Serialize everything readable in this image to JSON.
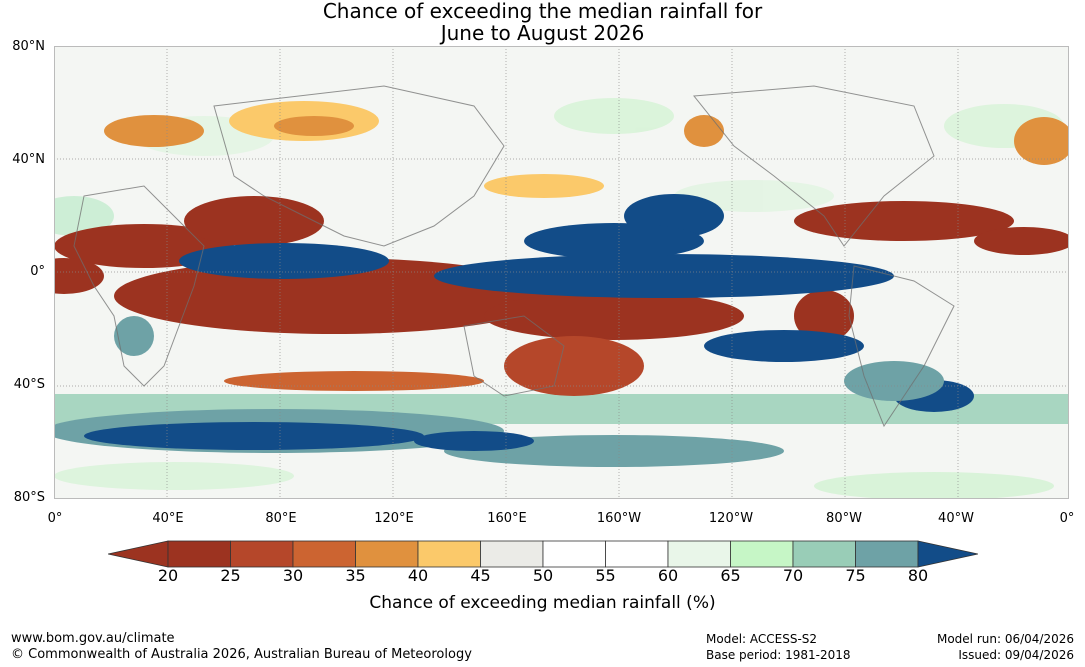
{
  "title_line1": "Chance of exceeding the median rainfall for",
  "title_line2": "June to August 2026",
  "lat_labels": [
    "80°N",
    "40°N",
    "0°",
    "40°S",
    "80°S"
  ],
  "lon_labels": [
    "0°",
    "40°E",
    "80°E",
    "120°E",
    "160°E",
    "160°W",
    "120°W",
    "80°W",
    "40°W",
    "0°"
  ],
  "colorbar": {
    "ticks": [
      "20",
      "25",
      "30",
      "35",
      "40",
      "45",
      "50",
      "55",
      "60",
      "65",
      "70",
      "75",
      "80"
    ],
    "colors": [
      "#9c3320",
      "#b5472a",
      "#cc6431",
      "#e0913e",
      "#fbc96a",
      "#ebebe7",
      "#ffffff",
      "#ffffff",
      "#e9f6e9",
      "#c6f6c6",
      "#99cdb7",
      "#6ea2a6",
      "#4a7b98"
    ],
    "under_color": "#9c3320",
    "over_color": "#124c88",
    "label": "Chance of exceeding median rainfall (%)"
  },
  "footer": {
    "url": "www.bom.gov.au/climate",
    "copyright": "© Commonwealth of Australia 2026, Australian Bureau of Meteorology",
    "model": "Model: ACCESS-S2",
    "base_period": "Base period: 1981-2018",
    "model_run": "Model run: 06/04/2026",
    "issued": "Issued: 09/04/2026"
  }
}
